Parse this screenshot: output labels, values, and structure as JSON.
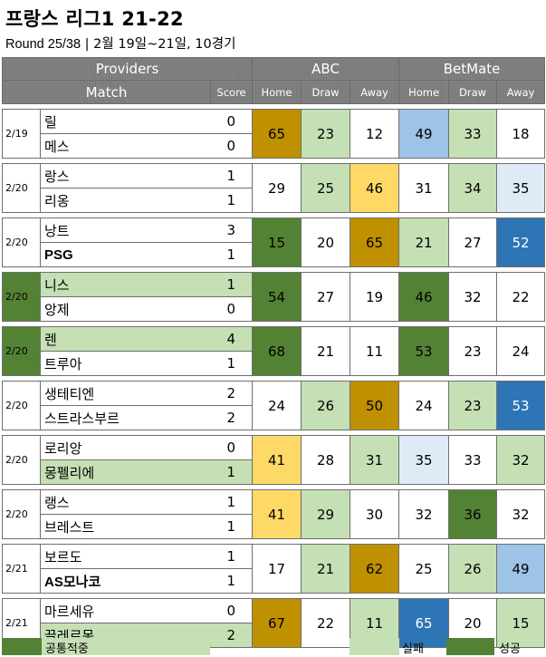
{
  "title": "프랑스 리그1 21-22",
  "subtitle_round": "Round 25/38",
  "subtitle_rest": " | 2월 19일~21일, 10경기",
  "header": {
    "providers": "Providers",
    "match": "Match",
    "score": "Score",
    "abc": "ABC",
    "betmate": "BetMate",
    "home": "Home",
    "draw": "Draw",
    "away": "Away"
  },
  "colors": {
    "gold": "#bf9000",
    "yellow": "#ffd966",
    "light_green": "#c5e0b4",
    "dark_green": "#548235",
    "light_blue": "#9dc3e6",
    "very_light_blue": "#deebf7",
    "blue": "#2e75b6"
  },
  "matches": [
    {
      "date": "2/19",
      "home": "릴",
      "away": "메스",
      "hs": "0",
      "as": "0",
      "abc": [
        "65",
        "23",
        "12"
      ],
      "bm": [
        "49",
        "33",
        "18"
      ]
    },
    {
      "date": "2/20",
      "home": "랑스",
      "away": "리옹",
      "hs": "1",
      "as": "1",
      "abc": [
        "29",
        "25",
        "46"
      ],
      "bm": [
        "31",
        "34",
        "35"
      ]
    },
    {
      "date": "2/20",
      "home": "낭트",
      "away": "PSG",
      "hs": "3",
      "as": "1",
      "abc": [
        "15",
        "20",
        "65"
      ],
      "bm": [
        "21",
        "27",
        "52"
      ]
    },
    {
      "date": "2/20",
      "home": "니스",
      "away": "앙제",
      "hs": "1",
      "as": "0",
      "abc": [
        "54",
        "27",
        "19"
      ],
      "bm": [
        "46",
        "32",
        "22"
      ]
    },
    {
      "date": "2/20",
      "home": "렌",
      "away": "트루아",
      "hs": "4",
      "as": "1",
      "abc": [
        "68",
        "21",
        "11"
      ],
      "bm": [
        "53",
        "23",
        "24"
      ]
    },
    {
      "date": "2/20",
      "home": "생테티엔",
      "away": "스트라스부르",
      "hs": "2",
      "as": "2",
      "abc": [
        "24",
        "26",
        "50"
      ],
      "bm": [
        "24",
        "23",
        "53"
      ]
    },
    {
      "date": "2/20",
      "home": "로리앙",
      "away": "몽펠리에",
      "hs": "0",
      "as": "1",
      "abc": [
        "41",
        "28",
        "31"
      ],
      "bm": [
        "35",
        "33",
        "32"
      ]
    },
    {
      "date": "2/20",
      "home": "랭스",
      "away": "브레스트",
      "hs": "1",
      "as": "1",
      "abc": [
        "41",
        "29",
        "30"
      ],
      "bm": [
        "32",
        "36",
        "32"
      ]
    },
    {
      "date": "2/21",
      "home": "보르도",
      "away": "AS모나코",
      "hs": "1",
      "as": "1",
      "abc": [
        "17",
        "21",
        "62"
      ],
      "bm": [
        "25",
        "26",
        "49"
      ]
    },
    {
      "date": "2/21",
      "home": "마르세유",
      "away": "끌레르몽",
      "hs": "0",
      "as": "2",
      "abc": [
        "67",
        "22",
        "11"
      ],
      "bm": [
        "65",
        "20",
        "15"
      ]
    }
  ],
  "legend": {
    "common": "공통적중",
    "fail": "실패",
    "success": "성공"
  }
}
